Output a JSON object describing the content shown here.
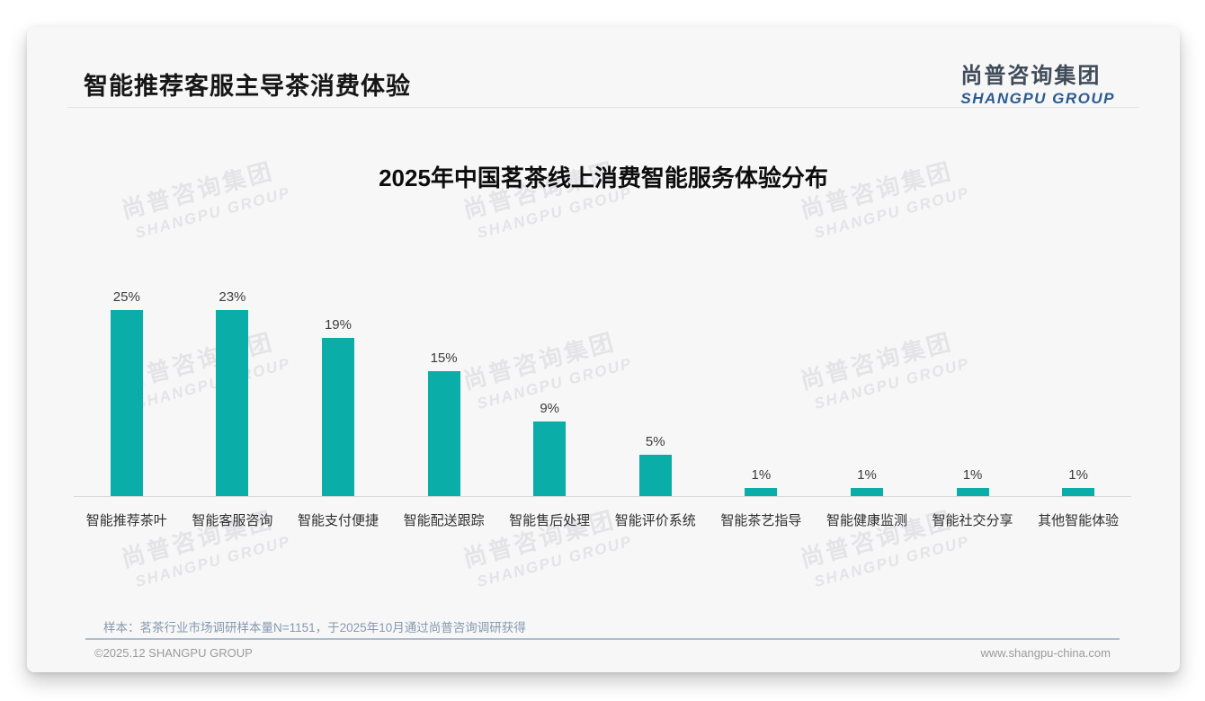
{
  "page": {
    "title": "智能推荐客服主导茶消费体验",
    "logo": {
      "cn": "尚普咨询集团",
      "en": "SHANGPU GROUP"
    },
    "watermark": {
      "cn": "尚普咨询集团",
      "en": "SHANGPU GROUP"
    },
    "footer": {
      "sample_note": "样本：茗茶行业市场调研样本量N=1151，于2025年10月通过尚普咨询调研获得",
      "copyright": "©2025.12 SHANGPU GROUP",
      "website": "www.shangpu-china.com"
    }
  },
  "colors": {
    "bar_teal": "#0aada8",
    "logo_cn_gray": "#404c59",
    "logo_en_blue": "#2a5c91",
    "sample_note_blue_gray": "#8799ad",
    "watermark_gray": "#e4e4e6",
    "card_background": "#f7f7f8"
  },
  "chart_data": {
    "type": "bar",
    "title": "2025年中国茗茶线上消费智能服务体验分布",
    "categories": [
      "智能推荐茶叶",
      "智能客服咨询",
      "智能支付便捷",
      "智能配送跟踪",
      "智能售后处理",
      "智能评价系统",
      "智能茶艺指导",
      "智能健康监测",
      "智能社交分享",
      "其他智能体验"
    ],
    "values": [
      25,
      23,
      19,
      15,
      9,
      5,
      1,
      1,
      1,
      1
    ],
    "value_labels": [
      "25%",
      "23%",
      "19%",
      "15%",
      "9%",
      "5%",
      "1%",
      "1%",
      "1%",
      "1%"
    ],
    "unit": "%",
    "xlabel": "",
    "ylabel": "",
    "ylim": [
      0,
      25
    ],
    "grid": false,
    "legend": false,
    "bar_color": "#0aada8"
  }
}
